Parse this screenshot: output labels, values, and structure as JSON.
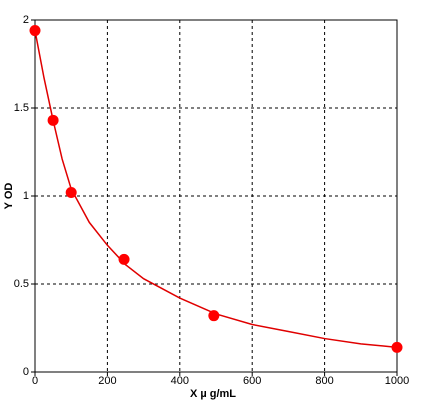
{
  "chart_data": {
    "type": "scatter",
    "xlabel": "X µ g/mL",
    "ylabel": "Y OD",
    "xlim": [
      0,
      1000
    ],
    "xticks": [
      0,
      200,
      400,
      600,
      800,
      1000
    ],
    "ylim": [
      0,
      2
    ],
    "yticks": [
      0,
      0.5,
      1,
      1.5,
      2
    ],
    "grid": true,
    "series": [
      {
        "type": "line",
        "color": "#e00000",
        "x": [
          0,
          25,
          50,
          75,
          100,
          150,
          200,
          250,
          300,
          400,
          500,
          600,
          700,
          800,
          900,
          1000
        ],
        "values": [
          1.94,
          1.67,
          1.43,
          1.21,
          1.04,
          0.85,
          0.72,
          0.61,
          0.53,
          0.42,
          0.33,
          0.27,
          0.23,
          0.19,
          0.16,
          0.14
        ]
      },
      {
        "type": "scatter",
        "color": "#ff0000",
        "x": [
          0,
          50,
          100,
          246,
          494,
          1000
        ],
        "values": [
          1.94,
          1.43,
          1.02,
          0.64,
          0.32,
          0.14
        ]
      }
    ]
  }
}
